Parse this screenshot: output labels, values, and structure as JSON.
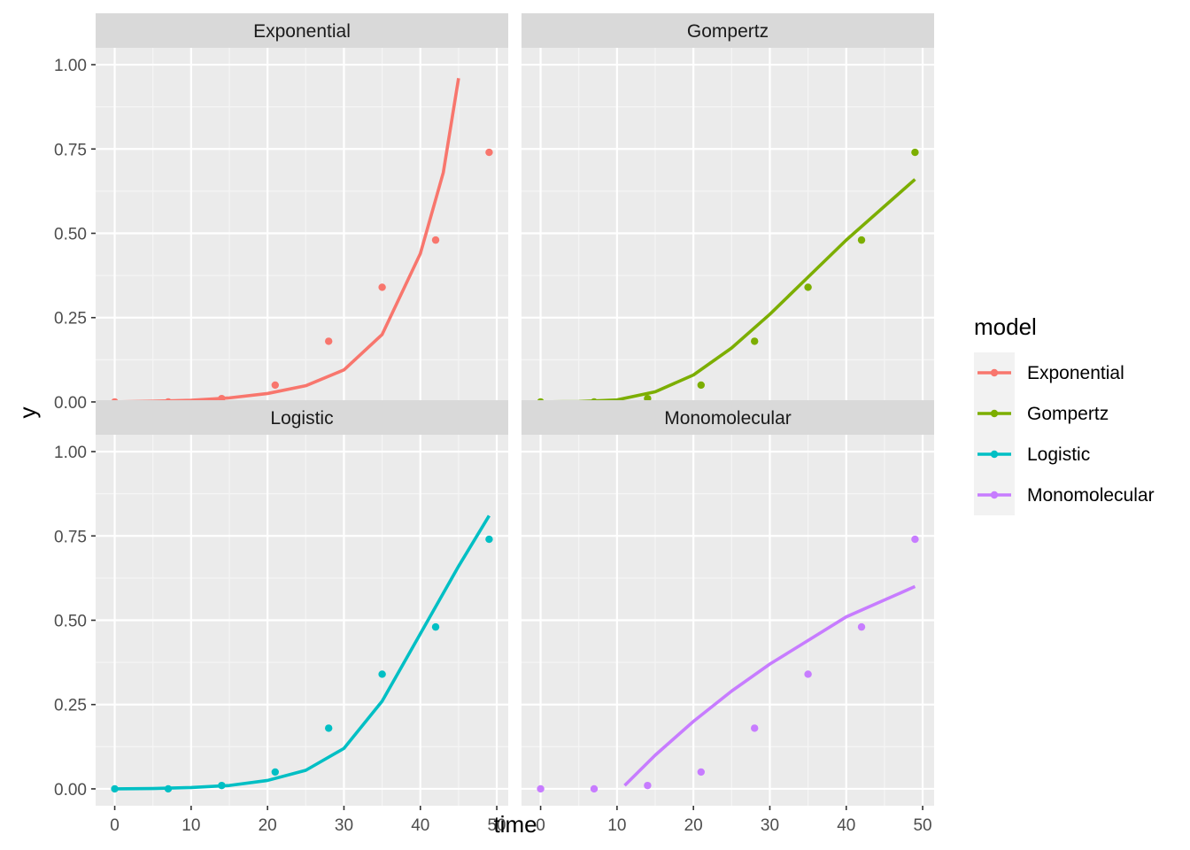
{
  "chart_data": {
    "type": "scatter",
    "layout": "facet_wrap 2x2",
    "xlabel": "time",
    "ylabel": "y",
    "xlim": [
      -2.5,
      51.5
    ],
    "ylim": [
      -0.05,
      1.05
    ],
    "x_ticks": [
      0,
      10,
      20,
      30,
      40,
      50
    ],
    "x_tick_labels": [
      "0",
      "10",
      "20",
      "30",
      "40",
      "50"
    ],
    "y_ticks": [
      0,
      0.25,
      0.5,
      0.75,
      1
    ],
    "y_tick_labels": [
      "0.00",
      "0.25",
      "0.50",
      "0.75",
      "1.00"
    ],
    "legend": {
      "title": "model",
      "position": "right",
      "entries": [
        "Exponential",
        "Gompertz",
        "Logistic",
        "Monomolecular"
      ]
    },
    "colors": {
      "Exponential": "#F8766D",
      "Gompertz": "#7CAE00",
      "Logistic": "#00BFC4",
      "Monomolecular": "#C77CFF"
    },
    "observed": {
      "time": [
        0,
        7,
        14,
        21,
        28,
        35,
        42,
        49
      ],
      "y": [
        0.0,
        0.0,
        0.01,
        0.05,
        0.18,
        0.34,
        0.48,
        0.74
      ]
    },
    "panels": [
      {
        "model": "Exponential",
        "fit": {
          "x": [
            0,
            5,
            10,
            15,
            20,
            25,
            30,
            35,
            40,
            43,
            45
          ],
          "y": [
            0.0,
            0.002,
            0.005,
            0.012,
            0.025,
            0.048,
            0.095,
            0.2,
            0.44,
            0.68,
            0.96
          ]
        }
      },
      {
        "model": "Gompertz",
        "fit": {
          "x": [
            0,
            5,
            10,
            15,
            20,
            25,
            30,
            35,
            40,
            45,
            49
          ],
          "y": [
            0.0,
            0.001,
            0.006,
            0.03,
            0.08,
            0.16,
            0.26,
            0.37,
            0.48,
            0.58,
            0.66
          ]
        }
      },
      {
        "model": "Logistic",
        "fit": {
          "x": [
            0,
            5,
            10,
            15,
            20,
            25,
            30,
            35,
            40,
            45,
            49
          ],
          "y": [
            0.0,
            0.001,
            0.004,
            0.01,
            0.025,
            0.055,
            0.12,
            0.26,
            0.46,
            0.66,
            0.81
          ]
        }
      },
      {
        "model": "Monomolecular",
        "fit": {
          "x": [
            11,
            15,
            20,
            25,
            30,
            35,
            40,
            45,
            49
          ],
          "y": [
            0.01,
            0.1,
            0.2,
            0.29,
            0.37,
            0.44,
            0.51,
            0.56,
            0.6
          ]
        }
      }
    ]
  }
}
